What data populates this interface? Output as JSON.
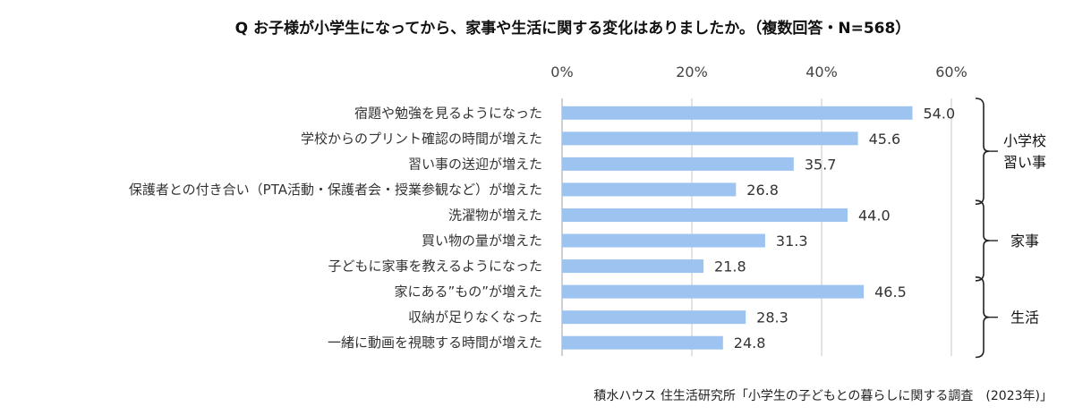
{
  "chart_data": {
    "type": "bar",
    "orientation": "horizontal",
    "title": "Q お子様が小学生になってから、家事や生活に関する変化はありましたか。（複数回答・N=568）",
    "categories": [
      "宿題や勉強を見るようになった",
      "学校からのプリント確認の時間が増えた",
      "習い事の送迎が増えた",
      "保護者との付き合い（PTA活動・保護者会・授業参観など）が増えた",
      "洗濯物が増えた",
      "買い物の量が増えた",
      "子どもに家事を教えるようになった",
      "家にある”もの”が増えた",
      "収納が足りなくなった",
      "一緒に動画を視聴する時間が増えた"
    ],
    "values": [
      54.0,
      45.6,
      35.7,
      26.8,
      44.0,
      31.3,
      21.8,
      46.5,
      28.3,
      24.8
    ],
    "value_labels": [
      "54.0",
      "45.6",
      "35.7",
      "26.8",
      "44.0",
      "31.3",
      "21.8",
      "46.5",
      "28.3",
      "24.8"
    ],
    "xlim": [
      0,
      60
    ],
    "x_ticks": [
      0,
      20,
      40,
      60
    ],
    "x_tick_labels": [
      "0%",
      "20%",
      "40%",
      "60%"
    ],
    "axis_position": "top",
    "grid": true,
    "bar_color": "#9dc3f0",
    "grid_color": "#d0d0d0",
    "groups": [
      {
        "label_lines": [
          "小学校",
          "習い事"
        ],
        "start": 0,
        "end": 3
      },
      {
        "label_lines": [
          "家事"
        ],
        "start": 4,
        "end": 6
      },
      {
        "label_lines": [
          "生活"
        ],
        "start": 7,
        "end": 9
      }
    ],
    "source": "積水ハウス 住生活研究所「小学生の子どもとの暮らしに関する調査　(2023年)」"
  }
}
